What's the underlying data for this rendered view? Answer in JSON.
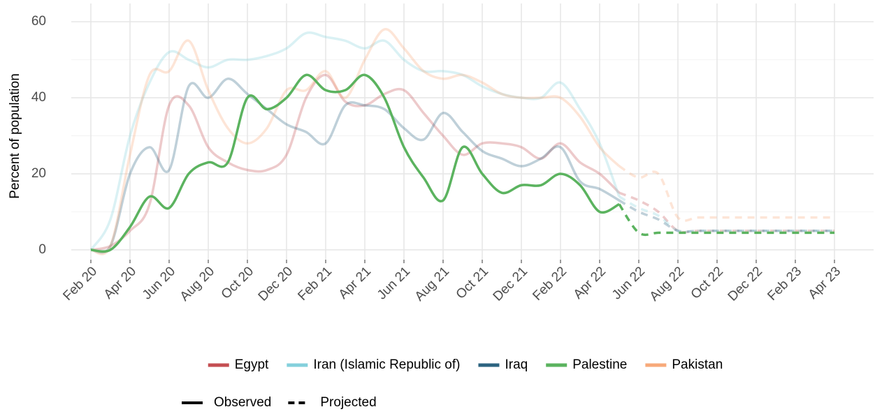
{
  "chart_data": {
    "type": "line",
    "y_label": "Percent of population",
    "x": [
      "2020-02",
      "2020-03",
      "2020-04",
      "2020-05",
      "2020-06",
      "2020-07",
      "2020-08",
      "2020-09",
      "2020-10",
      "2020-11",
      "2020-12",
      "2021-01",
      "2021-02",
      "2021-03",
      "2021-04",
      "2021-05",
      "2021-06",
      "2021-07",
      "2021-08",
      "2021-09",
      "2021-10",
      "2021-11",
      "2021-12",
      "2022-01",
      "2022-02",
      "2022-03",
      "2022-04",
      "2022-05",
      "2022-06",
      "2022-07",
      "2022-08",
      "2022-09",
      "2022-10",
      "2022-11",
      "2022-12",
      "2023-01",
      "2023-02",
      "2023-03",
      "2023-04"
    ],
    "series": [
      {
        "name": "Egypt",
        "color": "#c44e52",
        "opacity": 0.3,
        "values": [
          0,
          1,
          5,
          12,
          38,
          38,
          27,
          23,
          21,
          21,
          25,
          40,
          46,
          39,
          38,
          41,
          42,
          36,
          30,
          25,
          28,
          28,
          27,
          24,
          28,
          23,
          20,
          15,
          null,
          null,
          null,
          null,
          null,
          null,
          null,
          null,
          null,
          null,
          null
        ],
        "projected": [
          null,
          null,
          null,
          null,
          null,
          null,
          null,
          null,
          null,
          null,
          null,
          null,
          null,
          null,
          null,
          null,
          null,
          null,
          null,
          null,
          null,
          null,
          null,
          null,
          null,
          null,
          null,
          15,
          13,
          10,
          5,
          5,
          5,
          5,
          5,
          5,
          5,
          5,
          5
        ]
      },
      {
        "name": "Iran (Islamic Republic of)",
        "color": "#84d0dc",
        "opacity": 0.3,
        "values": [
          0,
          8,
          30,
          44,
          52,
          50,
          48,
          50,
          50,
          51,
          53,
          57,
          56,
          55,
          53,
          55,
          50,
          47,
          47,
          46,
          43,
          41,
          40,
          40,
          44,
          37,
          28,
          14,
          null,
          null,
          null,
          null,
          null,
          null,
          null,
          null,
          null,
          null,
          null
        ],
        "projected": [
          null,
          null,
          null,
          null,
          null,
          null,
          null,
          null,
          null,
          null,
          null,
          null,
          null,
          null,
          null,
          null,
          null,
          null,
          null,
          null,
          null,
          null,
          null,
          null,
          null,
          null,
          null,
          14,
          11,
          9,
          5,
          5,
          5,
          5,
          5,
          5,
          5,
          5,
          5
        ]
      },
      {
        "name": "Iraq",
        "color": "#2c6380",
        "opacity": 0.3,
        "values": [
          0,
          1,
          20,
          27,
          21,
          43,
          40,
          45,
          41,
          37,
          33,
          31,
          28,
          38,
          38,
          37,
          32,
          29,
          36,
          31,
          26,
          24,
          22,
          24,
          27,
          18,
          16,
          13,
          null,
          null,
          null,
          null,
          null,
          null,
          null,
          null,
          null,
          null,
          null
        ],
        "projected": [
          null,
          null,
          null,
          null,
          null,
          null,
          null,
          null,
          null,
          null,
          null,
          null,
          null,
          null,
          null,
          null,
          null,
          null,
          null,
          null,
          null,
          null,
          null,
          null,
          null,
          null,
          null,
          13,
          10,
          8,
          5,
          5,
          5,
          5,
          5,
          5,
          5,
          5,
          5
        ]
      },
      {
        "name": "Palestine",
        "color": "#5bb35f",
        "opacity": 1,
        "values": [
          0,
          0,
          6,
          14,
          11,
          20,
          23,
          23,
          40,
          37,
          40,
          46,
          42,
          42,
          46,
          40,
          27,
          19,
          13,
          27,
          20,
          15,
          17,
          17,
          20,
          17,
          10,
          12,
          null,
          null,
          null,
          null,
          null,
          null,
          null,
          null,
          null,
          null,
          null
        ],
        "projected": [
          null,
          null,
          null,
          null,
          null,
          null,
          null,
          null,
          null,
          null,
          null,
          null,
          null,
          null,
          null,
          null,
          null,
          null,
          null,
          null,
          null,
          null,
          null,
          null,
          null,
          null,
          null,
          12,
          4.5,
          4.5,
          4.5,
          4.5,
          4.5,
          4.5,
          4.5,
          4.5,
          4.5,
          4.5,
          4.5
        ]
      },
      {
        "name": "Pakistan",
        "color": "#f7a97a",
        "opacity": 0.3,
        "values": [
          0,
          1,
          25,
          46,
          47,
          55,
          42,
          32,
          28,
          32,
          42,
          42,
          47,
          40,
          50,
          58,
          53,
          47,
          45,
          46,
          44,
          41,
          40,
          40,
          40,
          35,
          27,
          22,
          null,
          null,
          null,
          null,
          null,
          null,
          null,
          null,
          null,
          null,
          null
        ],
        "projected": [
          null,
          null,
          null,
          null,
          null,
          null,
          null,
          null,
          null,
          null,
          null,
          null,
          null,
          null,
          null,
          null,
          null,
          null,
          null,
          null,
          null,
          null,
          null,
          null,
          null,
          null,
          null,
          22,
          19,
          20,
          8.5,
          8.5,
          8.5,
          8.5,
          8.5,
          8.5,
          8.5,
          8.5,
          8.5
        ]
      }
    ],
    "linetype_legend": [
      "Observed",
      "Projected"
    ],
    "xlim": [
      "2020-01",
      "2023-06"
    ],
    "xticks": [
      {
        "value": "2020-02",
        "label": "Feb 20"
      },
      {
        "value": "2020-04",
        "label": "Apr 20"
      },
      {
        "value": "2020-06",
        "label": "Jun 20"
      },
      {
        "value": "2020-08",
        "label": "Aug 20"
      },
      {
        "value": "2020-10",
        "label": "Oct 20"
      },
      {
        "value": "2020-12",
        "label": "Dec 20"
      },
      {
        "value": "2021-02",
        "label": "Feb 21"
      },
      {
        "value": "2021-04",
        "label": "Apr 21"
      },
      {
        "value": "2021-06",
        "label": "Jun 21"
      },
      {
        "value": "2021-08",
        "label": "Aug 21"
      },
      {
        "value": "2021-10",
        "label": "Oct 21"
      },
      {
        "value": "2021-12",
        "label": "Dec 21"
      },
      {
        "value": "2022-02",
        "label": "Feb 22"
      },
      {
        "value": "2022-04",
        "label": "Apr 22"
      },
      {
        "value": "2022-06",
        "label": "Jun 22"
      },
      {
        "value": "2022-08",
        "label": "Aug 22"
      },
      {
        "value": "2022-10",
        "label": "Oct 22"
      },
      {
        "value": "2022-12",
        "label": "Dec 22"
      },
      {
        "value": "2023-02",
        "label": "Feb 23"
      },
      {
        "value": "2023-04",
        "label": "Apr 23"
      }
    ],
    "ylim": [
      -2.6,
      64.8
    ],
    "yticks": [
      0,
      20,
      40,
      60
    ],
    "y_minor_grid": [
      10,
      30,
      50
    ],
    "grid": true
  }
}
